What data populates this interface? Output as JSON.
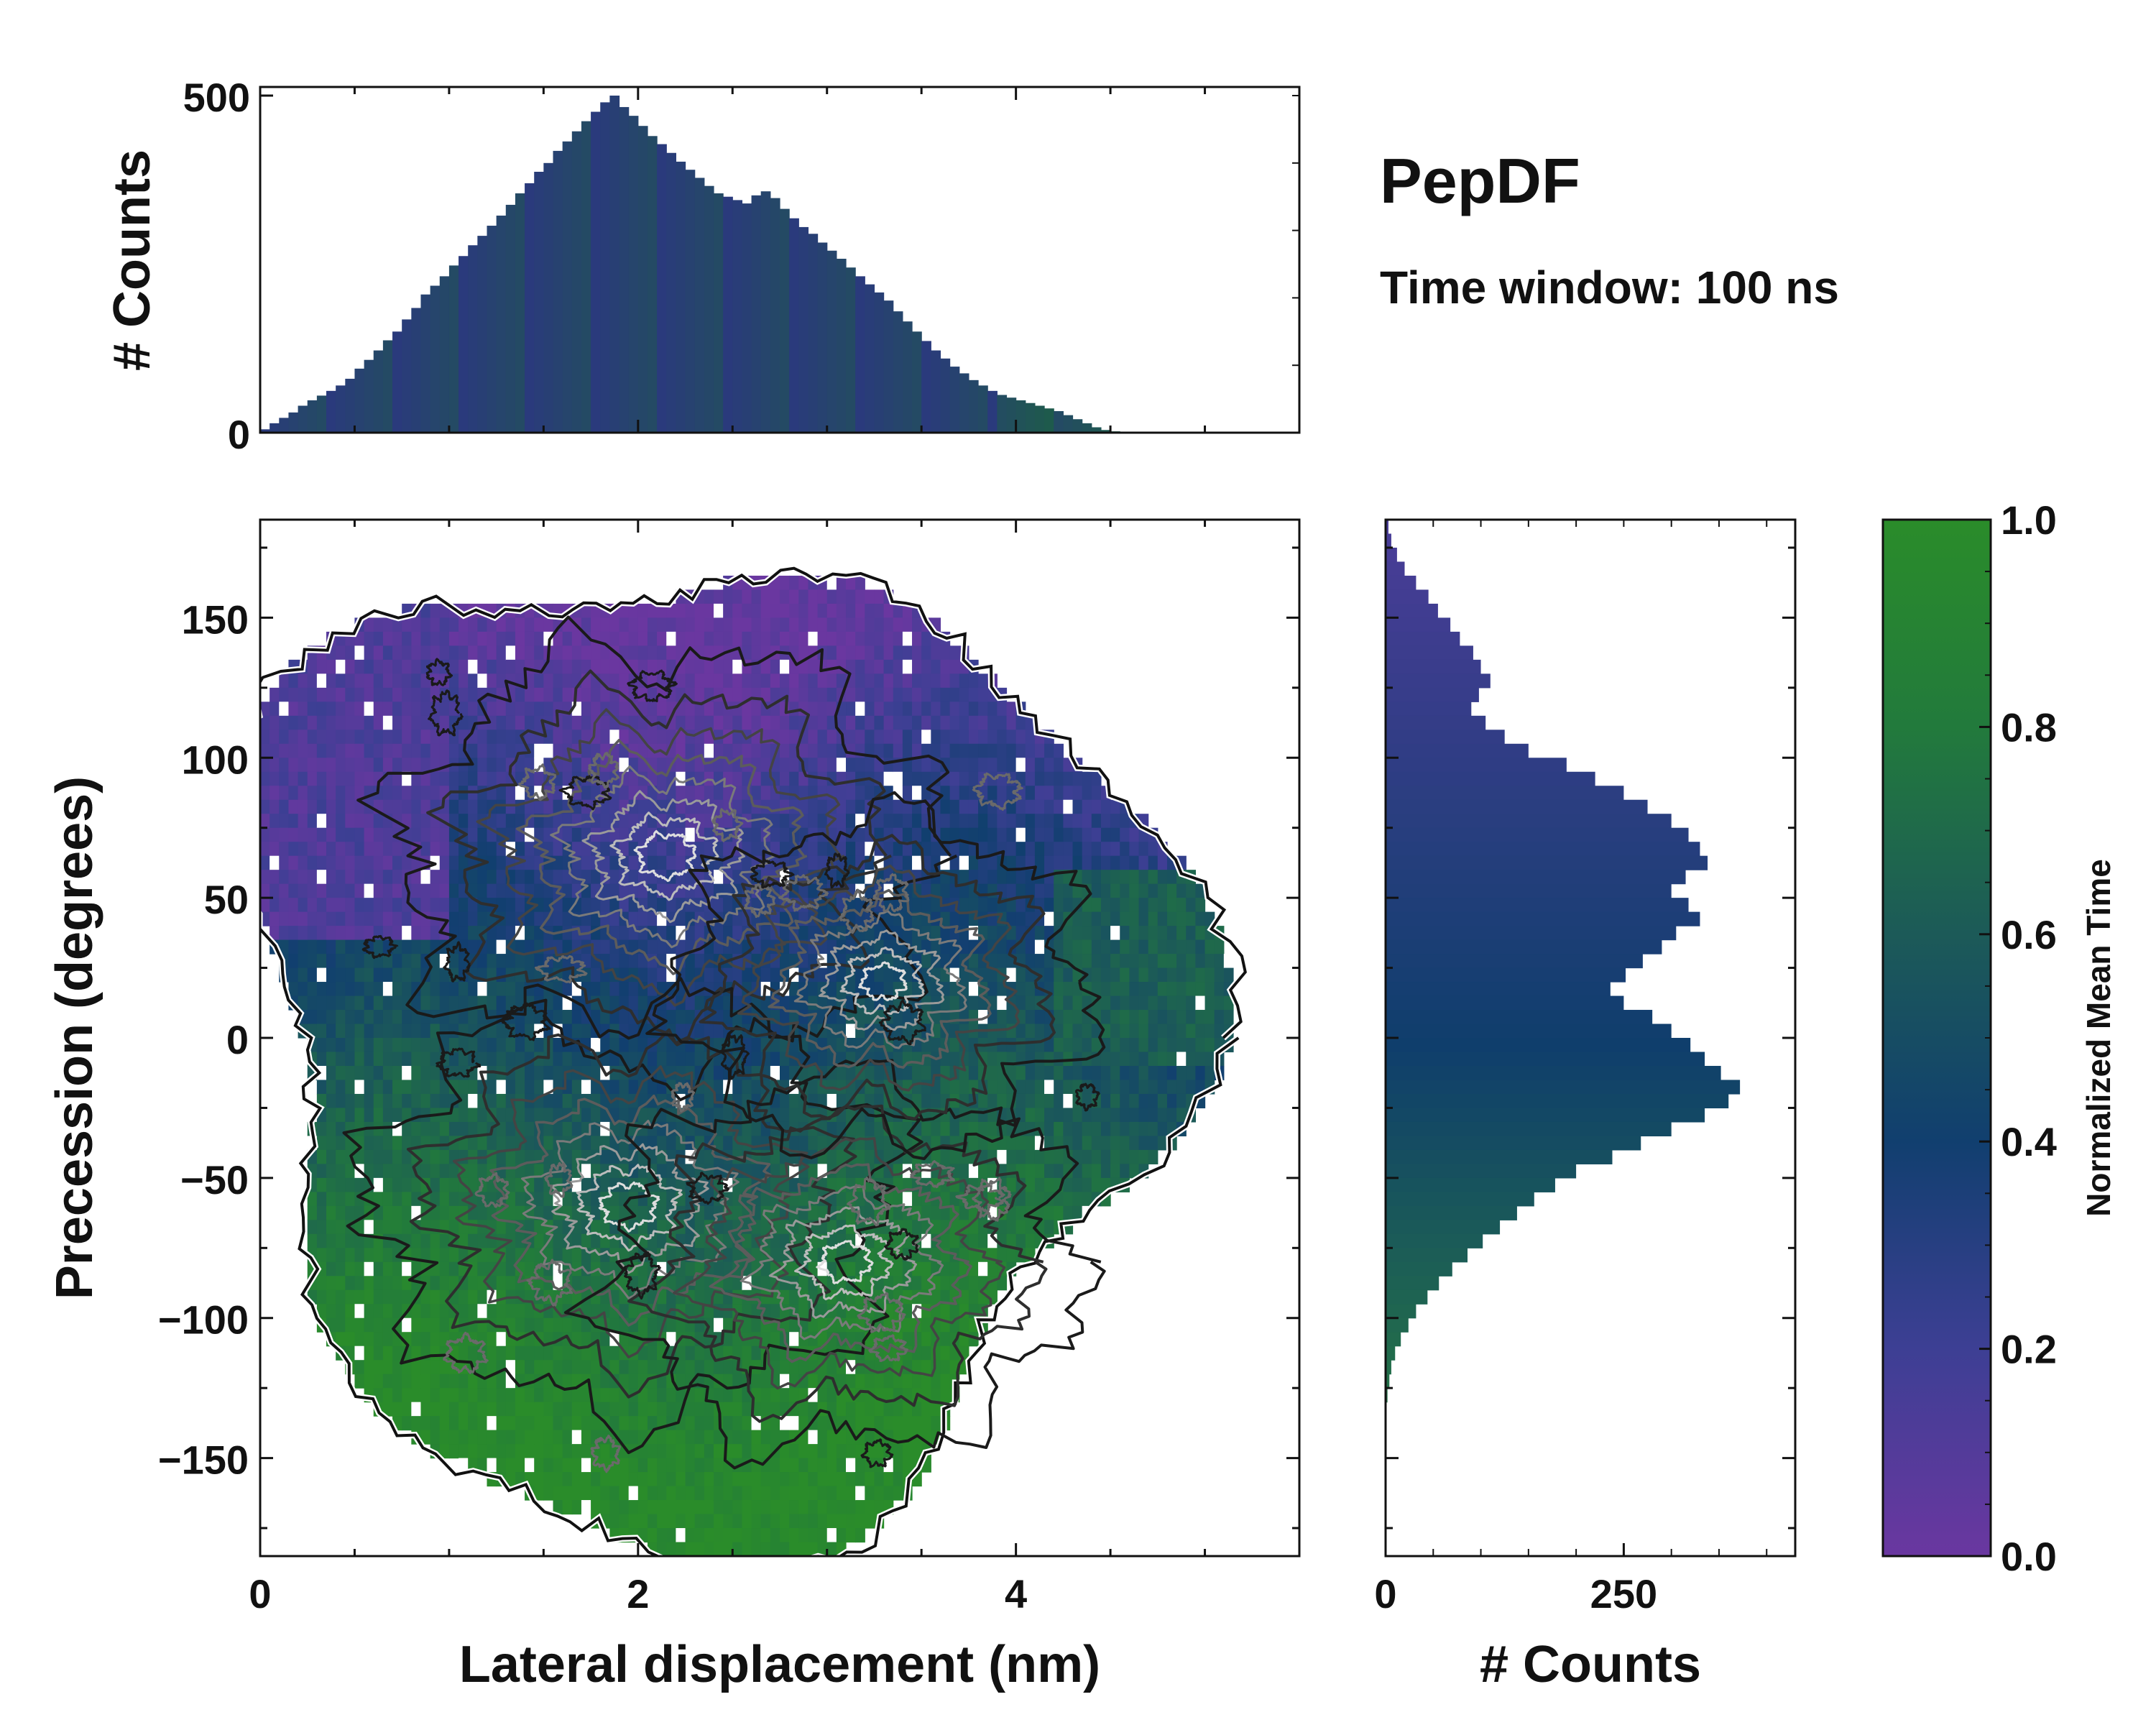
{
  "header": {
    "title": "PepDF",
    "subtitle": "Time window: 100 ns"
  },
  "chart_data": [
    {
      "type": "bar",
      "name": "top-marginal-histogram",
      "ylabel": "# Counts",
      "ylim": [
        0,
        500
      ],
      "yticks": [
        "0",
        "500"
      ],
      "x_start": 0.0,
      "bin_width": 0.05,
      "counts": [
        5,
        14,
        22,
        30,
        40,
        48,
        55,
        62,
        70,
        80,
        95,
        108,
        122,
        137,
        150,
        168,
        185,
        205,
        218,
        232,
        248,
        262,
        278,
        292,
        307,
        322,
        338,
        355,
        370,
        387,
        400,
        418,
        432,
        447,
        462,
        476,
        490,
        500,
        483,
        470,
        455,
        440,
        428,
        415,
        402,
        390,
        378,
        366,
        355,
        350,
        345,
        340,
        352,
        358,
        348,
        332,
        318,
        305,
        295,
        282,
        270,
        258,
        245,
        232,
        220,
        208,
        196,
        180,
        165,
        150,
        136,
        122,
        110,
        98,
        88,
        78,
        70,
        62,
        56,
        52,
        48,
        44,
        40,
        36,
        32,
        26,
        20,
        14,
        8,
        4,
        2,
        1,
        0,
        0,
        0,
        0,
        0,
        0,
        0
      ],
      "color_low": "#2a3a7c",
      "color_high": "#1e5a4c"
    },
    {
      "type": "heatmap",
      "name": "main-2d-histogram",
      "title": "",
      "xlabel": "Lateral displacement (nm)",
      "ylabel": "Precession (degrees)",
      "xlim": [
        0,
        5.5
      ],
      "ylim": [
        -185,
        185
      ],
      "xticks": [
        "0",
        "2",
        "4"
      ],
      "xtick_values": [
        0,
        2,
        4
      ],
      "yticks": [
        "150",
        "100",
        "50",
        "0",
        "−50",
        "−100",
        "−150"
      ],
      "ytick_values": [
        150,
        100,
        50,
        0,
        -50,
        -100,
        -150
      ],
      "density_peaks": [
        {
          "x": 2.15,
          "y": 65,
          "weight": 1.0
        },
        {
          "x": 1.95,
          "y": -60,
          "weight": 0.95
        },
        {
          "x": 3.1,
          "y": -80,
          "weight": 0.7
        },
        {
          "x": 3.3,
          "y": 20,
          "weight": 0.45
        }
      ]
    },
    {
      "type": "bar",
      "name": "right-marginal-histogram",
      "orientation": "horizontal",
      "xlabel": "# Counts",
      "xlim": [
        0,
        430
      ],
      "xticks": [
        "0",
        "250"
      ],
      "xtick_values": [
        0,
        250
      ],
      "y_top": 185,
      "bin_width_deg": 5,
      "counts": [
        3,
        6,
        12,
        20,
        32,
        45,
        55,
        68,
        78,
        92,
        100,
        110,
        98,
        90,
        105,
        125,
        150,
        190,
        220,
        250,
        275,
        300,
        318,
        330,
        338,
        315,
        300,
        318,
        330,
        305,
        290,
        270,
        252,
        236,
        250,
        280,
        300,
        320,
        335,
        352,
        372,
        360,
        335,
        300,
        268,
        238,
        200,
        178,
        156,
        138,
        120,
        102,
        86,
        70,
        56,
        44,
        32,
        24,
        16,
        10,
        6,
        4,
        2,
        1,
        0,
        0,
        0,
        0,
        0,
        0,
        0,
        0,
        0,
        0
      ],
      "color_low": "#4a3d98",
      "color_mid": "#0f3e6c",
      "color_high": "#2e8a36"
    },
    {
      "type": "colorbar",
      "name": "colorbar",
      "label": "Normalized Mean Time",
      "range": [
        0.0,
        1.0
      ],
      "ticks": [
        "0.0",
        "0.2",
        "0.4",
        "0.6",
        "0.8",
        "1.0"
      ],
      "tick_values": [
        0.0,
        0.2,
        0.4,
        0.6,
        0.8,
        1.0
      ],
      "stops": [
        "#6a37a0",
        "#3d3f94",
        "#113f6f",
        "#1c5a58",
        "#227a3c",
        "#2a8c2a"
      ]
    }
  ]
}
